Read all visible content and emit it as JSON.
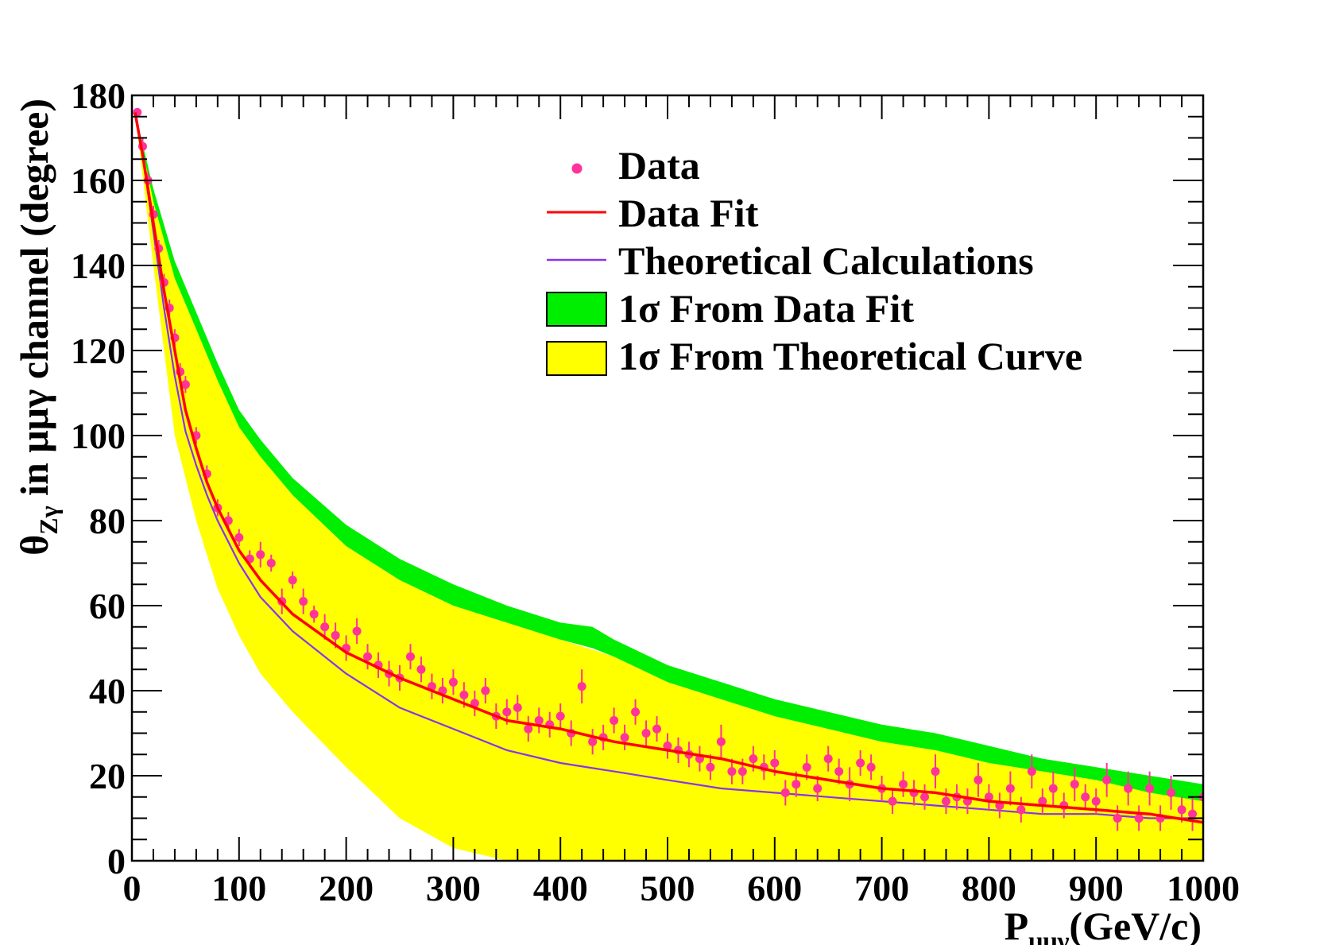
{
  "chart_data": {
    "type": "scatter",
    "title": "",
    "xlabel": {
      "main": "P",
      "sub": "μμγ",
      "unit": "(GeV/c)"
    },
    "ylabel": {
      "theta": "θ",
      "sub": "Zγ",
      "text": " in  μμγ channel (degree)"
    },
    "xlim": [
      0,
      1000
    ],
    "ylim": [
      0,
      180
    ],
    "x_ticks": [
      "0",
      "100",
      "200",
      "300",
      "400",
      "500",
      "600",
      "700",
      "800",
      "900",
      "1000"
    ],
    "y_ticks": [
      "0",
      "20",
      "40",
      "60",
      "80",
      "100",
      "120",
      "140",
      "160",
      "180"
    ],
    "legend": [
      {
        "label": "Data",
        "type": "marker",
        "color": "#ff3399"
      },
      {
        "label": "Data Fit",
        "type": "line",
        "color": "#ff0000"
      },
      {
        "label": "Theoretical Calculations",
        "type": "line",
        "color": "#8833ee"
      },
      {
        "label": "1σ From Data Fit",
        "type": "band",
        "color": "#00ee00"
      },
      {
        "label": "1σ From Theoretical Curve",
        "type": "band",
        "color": "#ffff00"
      }
    ],
    "colors": {
      "data": "#ff3399",
      "fit": "#ff0000",
      "theory": "#8833ee",
      "band_fit": "#00ee00",
      "band_theory": "#ffff00"
    },
    "series": [
      {
        "name": "Data",
        "kind": "points",
        "x": [
          5,
          10,
          15,
          20,
          25,
          30,
          35,
          40,
          45,
          50,
          60,
          70,
          80,
          90,
          100,
          110,
          120,
          130,
          140,
          150,
          160,
          170,
          180,
          190,
          200,
          210,
          220,
          230,
          240,
          250,
          260,
          270,
          280,
          290,
          300,
          310,
          320,
          330,
          340,
          350,
          360,
          370,
          380,
          390,
          400,
          410,
          420,
          430,
          440,
          450,
          460,
          470,
          480,
          490,
          500,
          510,
          520,
          530,
          540,
          550,
          560,
          570,
          580,
          590,
          600,
          610,
          620,
          630,
          640,
          650,
          660,
          670,
          680,
          690,
          700,
          710,
          720,
          730,
          740,
          750,
          760,
          770,
          780,
          790,
          800,
          810,
          820,
          830,
          840,
          850,
          860,
          870,
          880,
          890,
          900,
          910,
          920,
          930,
          940,
          950,
          960,
          970,
          980,
          990,
          1000
        ],
        "y": [
          176,
          168,
          160,
          152,
          144,
          136,
          130,
          123,
          115,
          112,
          100,
          91,
          83,
          80,
          76,
          71,
          72,
          70,
          61,
          66,
          61,
          58,
          55,
          53,
          50,
          54,
          48,
          46,
          44,
          43,
          48,
          45,
          41,
          40,
          42,
          39,
          37,
          40,
          34,
          35,
          36,
          31,
          33,
          32,
          34,
          30,
          41,
          28,
          29,
          33,
          29,
          35,
          30,
          31,
          27,
          26,
          25,
          24,
          22,
          28,
          21,
          21,
          24,
          22,
          23,
          16,
          18,
          22,
          17,
          24,
          21,
          18,
          23,
          22,
          17,
          14,
          18,
          16,
          15,
          21,
          14,
          15,
          14,
          19,
          15,
          13,
          17,
          12,
          21,
          14,
          17,
          13,
          18,
          15,
          14,
          19,
          10,
          17,
          10,
          17,
          10,
          16,
          12,
          11,
          15
        ],
        "yerr": [
          1,
          2,
          2,
          2,
          2,
          2,
          2,
          2,
          2,
          2,
          2,
          2,
          2,
          2,
          2,
          2,
          3,
          2,
          3,
          2,
          3,
          2,
          3,
          3,
          3,
          3,
          3,
          3,
          3,
          3,
          3,
          3,
          3,
          3,
          3,
          3,
          3,
          3,
          3,
          3,
          3,
          3,
          3,
          3,
          3,
          3,
          4,
          3,
          3,
          3,
          3,
          3,
          3,
          3,
          3,
          3,
          3,
          3,
          3,
          4,
          3,
          3,
          3,
          3,
          3,
          3,
          3,
          3,
          3,
          3,
          3,
          4,
          3,
          3,
          3,
          3,
          3,
          3,
          3,
          4,
          3,
          3,
          3,
          4,
          3,
          3,
          4,
          3,
          4,
          3,
          4,
          3,
          4,
          3,
          3,
          4,
          3,
          4,
          3,
          4,
          3,
          4,
          3,
          4,
          4
        ]
      },
      {
        "name": "Data Fit",
        "kind": "line",
        "x": [
          3,
          10,
          20,
          30,
          40,
          50,
          60,
          70,
          80,
          100,
          120,
          150,
          200,
          250,
          300,
          350,
          400,
          450,
          500,
          550,
          600,
          650,
          700,
          750,
          800,
          850,
          900,
          950,
          1000
        ],
        "y": [
          176,
          166,
          150,
          134,
          120,
          106,
          97,
          89,
          83,
          73,
          66,
          58,
          49,
          43,
          38,
          33,
          31,
          28,
          26,
          24,
          21,
          19,
          17,
          16,
          14,
          13,
          12,
          11,
          9
        ]
      },
      {
        "name": "Theoretical Calculations",
        "kind": "line",
        "x": [
          3,
          10,
          20,
          30,
          40,
          50,
          60,
          70,
          80,
          100,
          120,
          150,
          200,
          250,
          300,
          350,
          400,
          450,
          500,
          550,
          600,
          650,
          700,
          750,
          800,
          850,
          900,
          950,
          1000
        ],
        "y": [
          176,
          166,
          148,
          130,
          114,
          101,
          93,
          86,
          80,
          70,
          62,
          54,
          44,
          36,
          31,
          26,
          23,
          21,
          19,
          17,
          16,
          15,
          14,
          13,
          12,
          11,
          11,
          10,
          10
        ]
      },
      {
        "name": "1σ From Data Fit",
        "kind": "band",
        "x": [
          3,
          20,
          40,
          60,
          80,
          100,
          120,
          150,
          200,
          250,
          300,
          350,
          400,
          430,
          450,
          500,
          550,
          600,
          650,
          700,
          750,
          800,
          850,
          900,
          950,
          1000
        ],
        "lo": [
          176,
          155,
          137,
          125,
          113,
          102,
          95,
          86,
          74,
          66,
          60,
          56,
          52,
          50,
          48,
          42,
          38,
          34,
          31,
          28,
          26,
          23,
          21,
          19,
          16,
          14
        ],
        "hi": [
          176,
          158,
          141,
          129,
          117,
          106,
          99,
          90,
          79,
          71,
          65,
          60,
          56,
          55,
          52,
          46,
          42,
          38,
          35,
          32,
          30,
          27,
          24,
          22,
          20,
          18
        ]
      },
      {
        "name": "1σ From Theoretical Curve",
        "kind": "band",
        "x": [
          3,
          20,
          40,
          60,
          80,
          100,
          120,
          150,
          200,
          250,
          300,
          350,
          400,
          450,
          500,
          550,
          600,
          650,
          700,
          750,
          800,
          850,
          900,
          950,
          1000
        ],
        "lo": [
          176,
          140,
          100,
          80,
          64,
          53,
          44,
          35,
          22,
          10,
          3,
          0,
          0,
          0,
          0,
          0,
          0,
          0,
          0,
          0,
          0,
          0,
          0,
          0,
          0
        ],
        "hi": [
          176,
          155,
          137,
          125,
          113,
          102,
          95,
          86,
          74,
          66,
          60,
          56,
          52,
          48,
          42,
          38,
          34,
          31,
          28,
          26,
          23,
          21,
          19,
          16,
          14
        ]
      }
    ]
  }
}
